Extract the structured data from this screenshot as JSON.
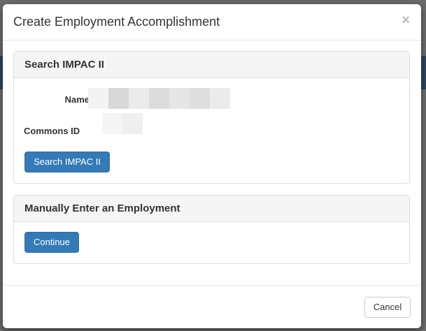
{
  "modal": {
    "title": "Create Employment Accomplishment",
    "close_icon": "×",
    "search_panel": {
      "heading": "Search IMPAC II",
      "name_label": "Name",
      "commons_id_label": "Commons ID",
      "search_button": "Search IMPAC II"
    },
    "manual_panel": {
      "heading": "Manually Enter an Employment",
      "continue_button": "Continue"
    },
    "cancel_button": "Cancel"
  },
  "colors": {
    "primary": "#337ab7"
  }
}
